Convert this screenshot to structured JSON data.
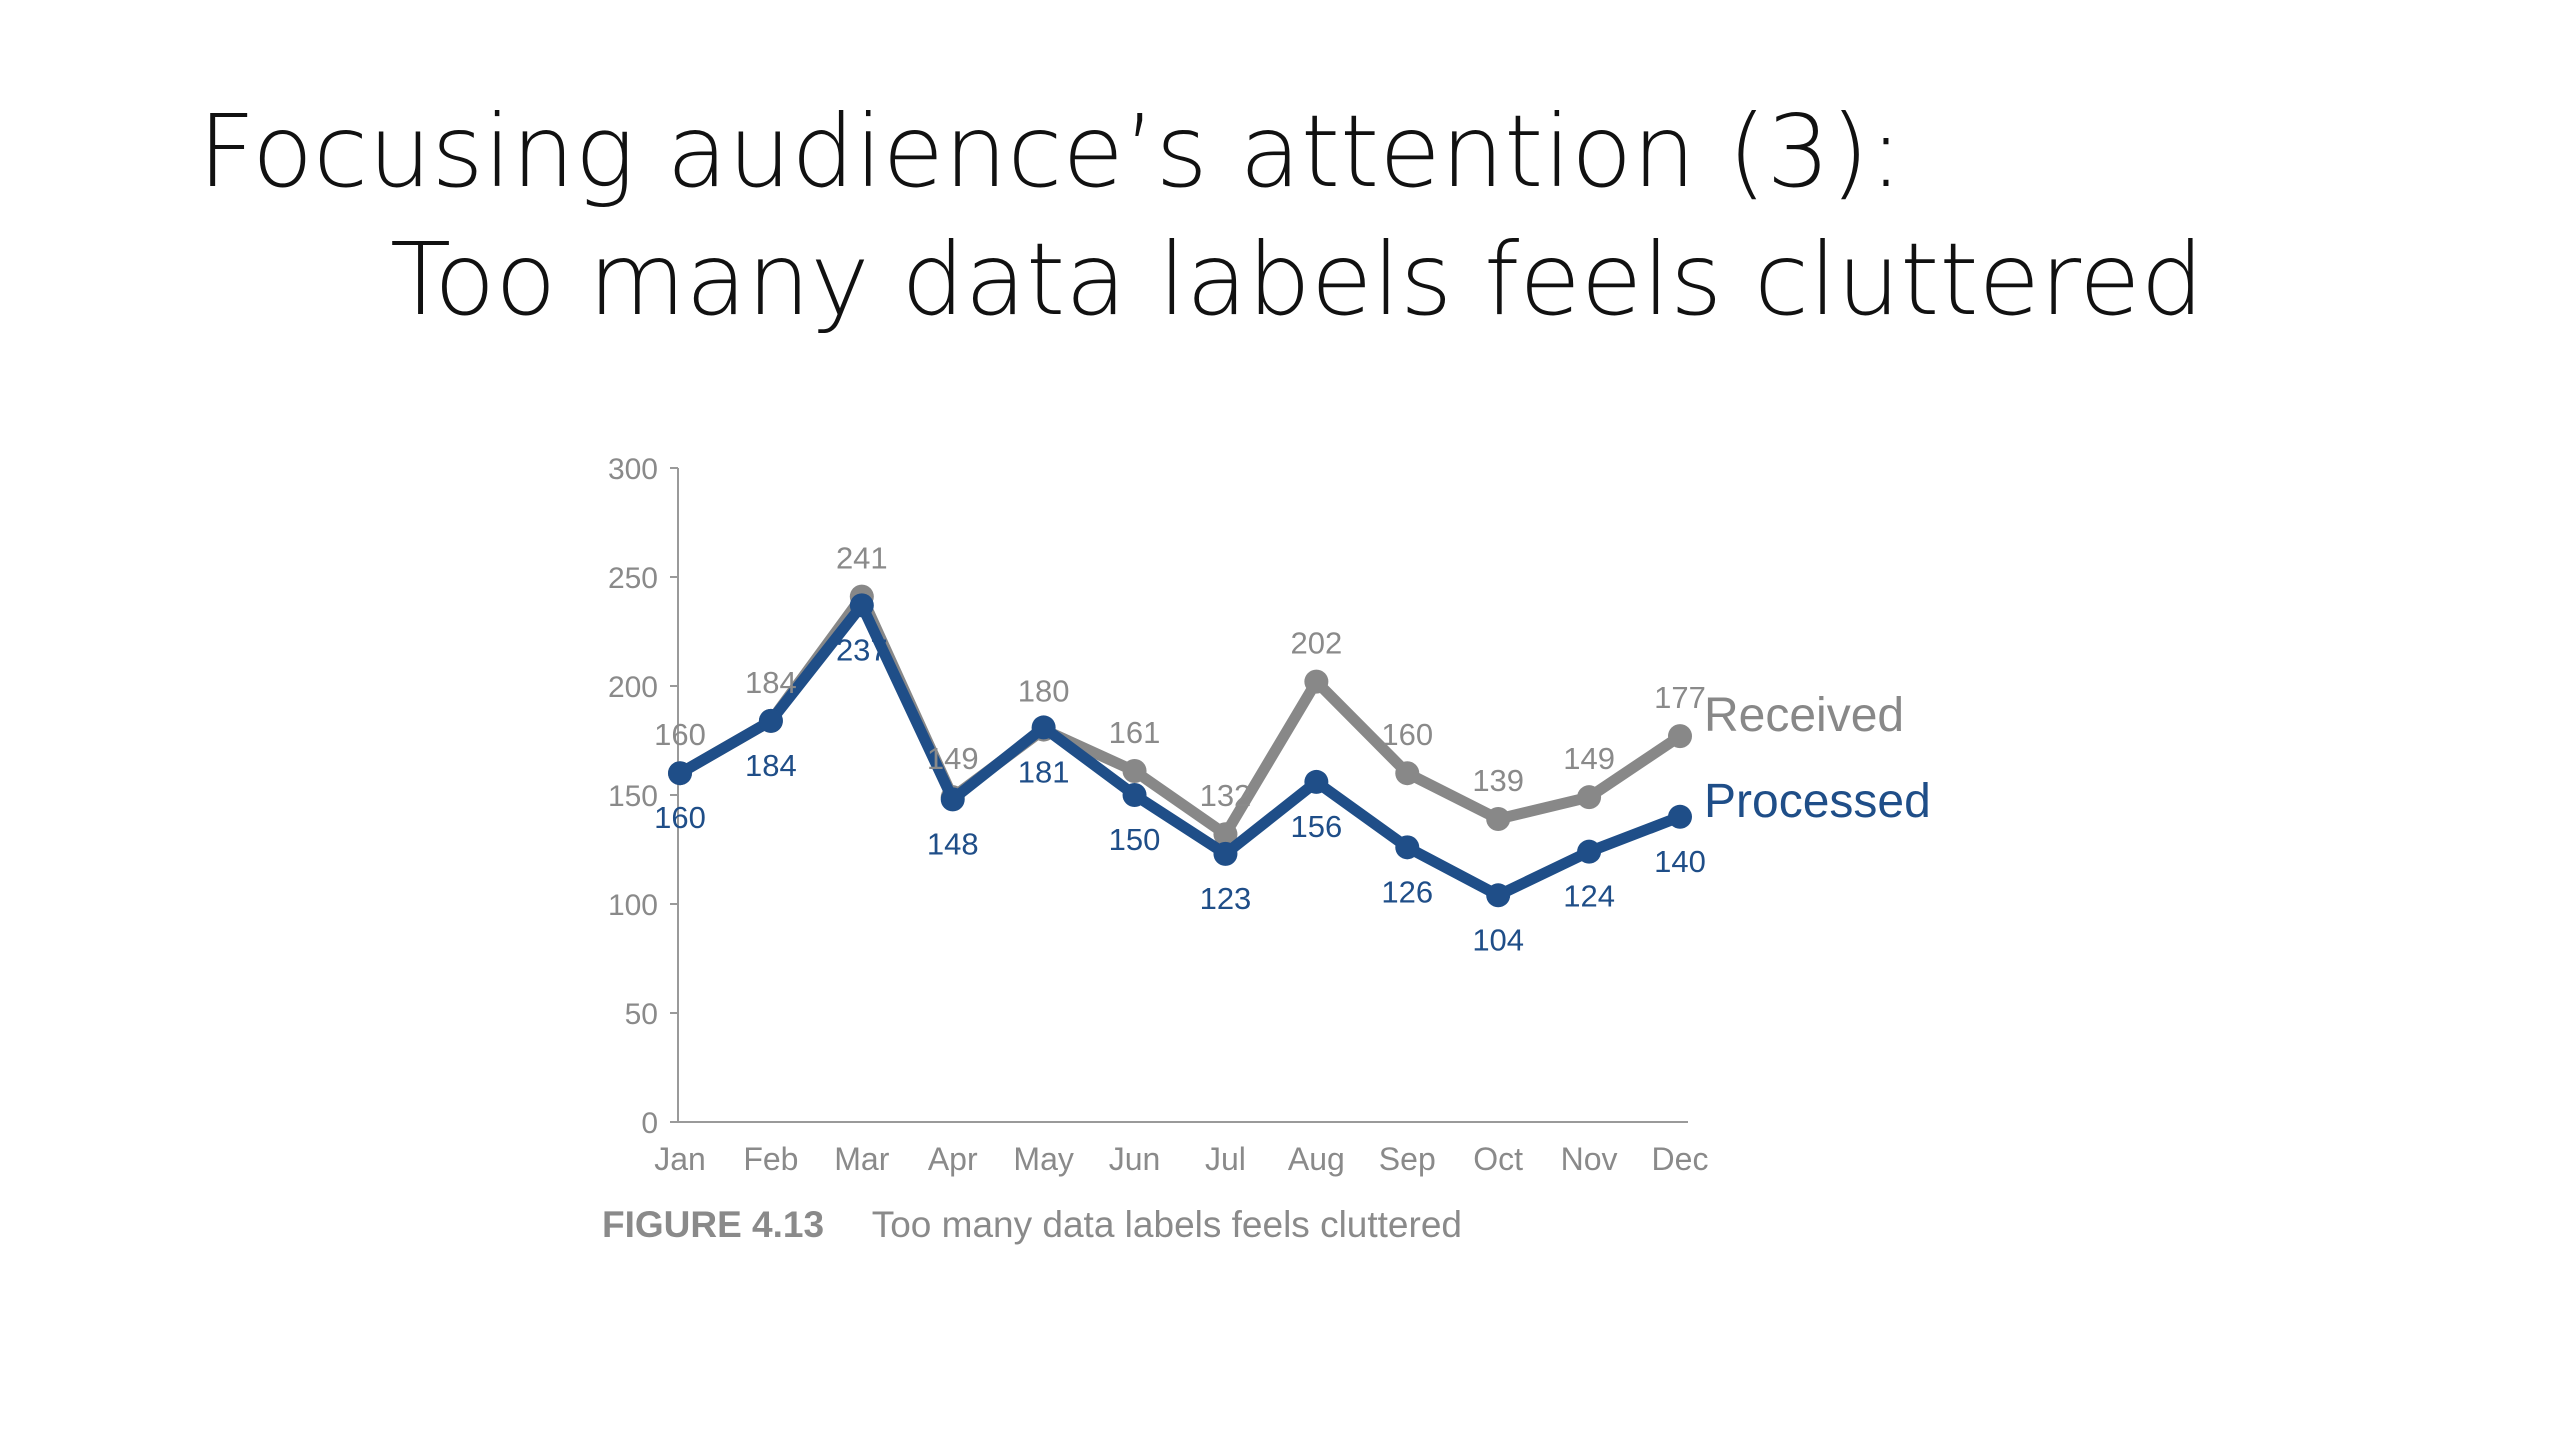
{
  "slide": {
    "title_line1": "Focusing audience’s attention (3):",
    "title_line2": "Too many data labels feels cluttered"
  },
  "caption": {
    "figure": "FIGURE 4.13",
    "text": "Too many data labels feels cluttered"
  },
  "chart_data": {
    "type": "line",
    "categories": [
      "Jan",
      "Feb",
      "Mar",
      "Apr",
      "May",
      "Jun",
      "Jul",
      "Aug",
      "Sep",
      "Oct",
      "Nov",
      "Dec"
    ],
    "ylim": [
      0,
      300
    ],
    "yticks": [
      0,
      50,
      100,
      150,
      200,
      250,
      300
    ],
    "grid": false,
    "legend": "direct labels at right end of lines",
    "series": [
      {
        "name": "Received",
        "color": "#888888",
        "values": [
          160,
          184,
          241,
          149,
          180,
          161,
          132,
          202,
          160,
          139,
          149,
          177
        ]
      },
      {
        "name": "Processed",
        "color": "#1f4e88",
        "values": [
          160,
          184,
          237,
          148,
          181,
          150,
          123,
          156,
          126,
          104,
          124,
          140
        ]
      }
    ]
  }
}
